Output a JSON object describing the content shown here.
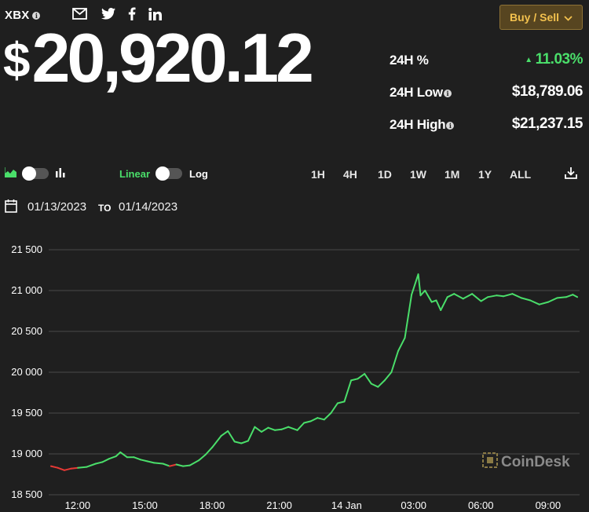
{
  "header": {
    "ticker": "XBX",
    "info_glyph": "i",
    "price_symbol": "$",
    "price_number": "20,920.12",
    "buy_sell_label": "Buy / Sell",
    "share_icons": [
      "mail-icon",
      "twitter-icon",
      "facebook-icon",
      "linkedin-icon"
    ]
  },
  "stats": {
    "change_label": "24H %",
    "change_value": "11.03%",
    "change_arrow": "▲",
    "low_label": "24H Low",
    "low_value": "$18,789.06",
    "high_label": "24H High",
    "high_value": "$21,237.15"
  },
  "controls": {
    "chart_type_left_icon": "area-chart-icon",
    "chart_type_right_icon": "bar-chart-icon",
    "scale_linear": "Linear",
    "scale_log": "Log",
    "ranges": [
      "1H",
      "4H",
      "1D",
      "1W",
      "1M",
      "1Y",
      "ALL"
    ],
    "active_range": "1D",
    "download_icon": "download-icon"
  },
  "date_range": {
    "from": "01/13/2023",
    "to_label": "TO",
    "to": "01/14/2023"
  },
  "watermark": "CoinDesk",
  "colors": {
    "background": "#1f1f1f",
    "up": "#4ade6a",
    "down": "#e53935",
    "gold": "#f3c14e"
  },
  "chart_data": {
    "type": "line",
    "ylim": [
      18500,
      21500
    ],
    "yticks": [
      "21 500",
      "21 000",
      "20 500",
      "20 000",
      "19 500",
      "19 000",
      "18 500"
    ],
    "ytick_values": [
      21500,
      21000,
      20500,
      20000,
      19500,
      19000,
      18500
    ],
    "xlim": [
      10.7,
      34.4
    ],
    "xticks": [
      "12:00",
      "15:00",
      "18:00",
      "21:00",
      "14 Jan",
      "03:00",
      "06:00",
      "09:00"
    ],
    "xtick_hours": [
      12,
      15,
      18,
      21,
      24,
      27,
      30,
      33
    ],
    "series": [
      {
        "x": [
          10.8,
          11.1,
          11.4,
          11.7,
          12.0,
          12.4,
          12.8,
          13.1,
          13.4,
          13.7,
          13.9,
          14.2,
          14.5,
          14.8,
          15.1,
          15.4,
          15.8,
          16.1,
          16.4,
          16.7,
          17.0,
          17.4,
          17.7,
          18.0,
          18.4,
          18.7,
          19.0,
          19.3,
          19.6,
          19.9,
          20.2,
          20.5,
          20.8,
          21.1,
          21.4,
          21.8,
          22.1,
          22.4,
          22.7,
          23.0,
          23.3,
          23.6,
          23.9,
          24.2,
          24.5,
          24.8,
          25.1,
          25.4,
          25.7,
          26.0,
          26.3,
          26.6,
          26.9,
          27.2,
          27.3,
          27.5,
          27.8,
          28.0,
          28.2,
          28.5,
          28.8,
          29.2,
          29.6,
          30.0,
          30.3,
          30.7,
          31.0,
          31.4,
          31.8,
          32.2,
          32.6,
          33.0,
          33.4,
          33.8,
          34.1,
          34.3
        ],
        "y": [
          18850,
          18830,
          18800,
          18820,
          18830,
          18840,
          18880,
          18900,
          18940,
          18970,
          19020,
          18960,
          18960,
          18930,
          18910,
          18890,
          18880,
          18850,
          18870,
          18850,
          18860,
          18920,
          18990,
          19080,
          19220,
          19280,
          19150,
          19130,
          19160,
          19330,
          19270,
          19320,
          19290,
          19300,
          19330,
          19290,
          19380,
          19400,
          19440,
          19420,
          19500,
          19620,
          19640,
          19900,
          19920,
          19980,
          19860,
          19820,
          19900,
          20000,
          20260,
          20420,
          20950,
          21200,
          20940,
          21000,
          20860,
          20880,
          20760,
          20920,
          20960,
          20900,
          20960,
          20870,
          20920,
          20940,
          20930,
          20960,
          20910,
          20880,
          20830,
          20860,
          20910,
          20920,
          20950,
          20920
        ],
        "down_segments": [
          [
            10.8,
            12.0
          ],
          [
            16.1,
            16.4
          ]
        ]
      }
    ]
  }
}
